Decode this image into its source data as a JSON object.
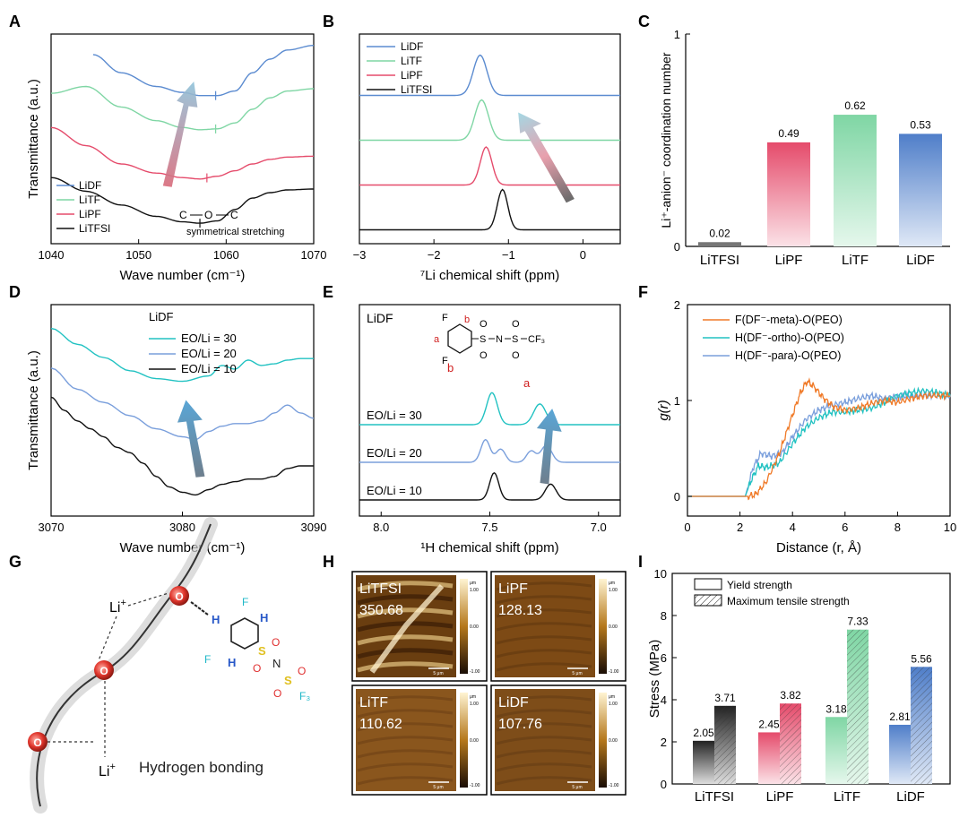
{
  "panel_letters": [
    "A",
    "B",
    "C",
    "D",
    "E",
    "F",
    "G",
    "H",
    "I"
  ],
  "colors": {
    "blue": "#5b8bd0",
    "green": "#7fd6a4",
    "red": "#e54b6b",
    "black": "#111111",
    "cyan": "#22c2c2",
    "orange": "#f07a28",
    "lightblue": "#7a9fdc"
  },
  "chart_data": [
    {
      "id": "A",
      "type": "line",
      "xlabel": "Wave number (cm⁻¹)",
      "ylabel": "Transmittance (a.u.)",
      "xlim": [
        1040,
        1070
      ],
      "xticks": [
        1040,
        1050,
        1060,
        1070
      ],
      "legend": [
        "LiDF",
        "LiTF",
        "LiPF",
        "LiTFSI"
      ],
      "series": [
        {
          "name": "LiDF",
          "x": [
            1044.8,
            1048,
            1052,
            1055,
            1057,
            1059,
            1061,
            1063,
            1065,
            1067,
            1070
          ],
          "y": [
            6.75,
            6.35,
            6.05,
            5.92,
            5.85,
            5.85,
            5.95,
            6.35,
            6.65,
            6.85,
            6.95
          ]
        },
        {
          "name": "LiTF",
          "x": [
            1040,
            1044,
            1048,
            1052,
            1055,
            1057,
            1059,
            1061,
            1063,
            1065,
            1067,
            1070
          ],
          "y": [
            5.9,
            6.05,
            5.6,
            5.3,
            5.15,
            5.1,
            5.12,
            5.25,
            5.55,
            5.8,
            5.95,
            6.0
          ]
        },
        {
          "name": "LiPF",
          "x": [
            1040,
            1044,
            1048,
            1052,
            1055,
            1057,
            1059,
            1061,
            1063,
            1065,
            1067,
            1070
          ],
          "y": [
            5.15,
            4.75,
            4.35,
            4.15,
            4.05,
            4.02,
            4.08,
            4.2,
            4.35,
            4.45,
            4.5,
            4.52
          ]
        },
        {
          "name": "LiTFSI",
          "x": [
            1040,
            1044,
            1048,
            1052,
            1055,
            1057,
            1059,
            1061,
            1063,
            1065,
            1067,
            1070
          ],
          "y": [
            4.05,
            3.75,
            3.45,
            3.2,
            3.08,
            3.05,
            3.1,
            3.35,
            3.6,
            3.72,
            3.78,
            3.8
          ]
        }
      ],
      "markers": [
        {
          "series": "LiDF",
          "x": 1058.8
        },
        {
          "series": "LiTF",
          "x": 1058.8
        },
        {
          "series": "LiPF",
          "x": 1057.8
        },
        {
          "series": "LiTFSI",
          "x": 1057
        }
      ],
      "annotation": "symmetrical stretching",
      "bond_atoms": [
        "C",
        "O",
        "C"
      ]
    },
    {
      "id": "B",
      "type": "line",
      "xlabel": "⁷Li chemical shift (ppm)",
      "ylabel": "",
      "xlim": [
        -3,
        0.5
      ],
      "xticks": [
        -3,
        -2,
        -1,
        0
      ],
      "xaxis_reversed": false,
      "legend": [
        "LiDF",
        "LiTF",
        "LiPF",
        "LiTFSI"
      ],
      "series": [
        {
          "name": "LiDF",
          "center": -1.38,
          "width": 0.13,
          "height": 0.9,
          "offset": 3.0
        },
        {
          "name": "LiTF",
          "center": -1.36,
          "width": 0.13,
          "height": 0.9,
          "offset": 2.0
        },
        {
          "name": "LiPF",
          "center": -1.3,
          "width": 0.11,
          "height": 0.85,
          "offset": 1.0
        },
        {
          "name": "LiTFSI",
          "center": -1.08,
          "width": 0.1,
          "height": 0.9,
          "offset": 0.0
        }
      ]
    },
    {
      "id": "C",
      "type": "bar",
      "ylabel": "Li⁺-anion⁻ coordination number",
      "categories": [
        "LiTFSI",
        "LiPF",
        "LiTF",
        "LiDF"
      ],
      "values": [
        0.02,
        0.49,
        0.62,
        0.53
      ],
      "value_labels": [
        "0.02",
        "0.49",
        "0.62",
        "0.53"
      ],
      "ylim": [
        0,
        1
      ],
      "yticks": [
        0,
        1
      ]
    },
    {
      "id": "D",
      "type": "line",
      "xlabel": "Wave number (cm⁻¹)",
      "ylabel": "Transmittance (a.u.)",
      "xlim": [
        3070,
        3090
      ],
      "xticks": [
        3070,
        3080,
        3090
      ],
      "legend_title": "LiDF",
      "legend": [
        "EO/Li = 30",
        "EO/Li = 20",
        "EO/Li = 10"
      ],
      "series": [
        {
          "name": "EO/Li = 30",
          "x": [
            3070,
            3072,
            3074,
            3076,
            3078,
            3080,
            3082,
            3083,
            3084,
            3085,
            3086,
            3087,
            3088,
            3089,
            3090
          ],
          "y": [
            5.05,
            4.75,
            4.5,
            4.25,
            4.1,
            4.05,
            4.15,
            4.35,
            4.28,
            4.45,
            4.35,
            4.38,
            4.45,
            4.48,
            4.48
          ]
        },
        {
          "name": "EO/Li = 20",
          "x": [
            3070,
            3072,
            3074,
            3076,
            3078,
            3080,
            3081,
            3082,
            3083,
            3084,
            3085,
            3086,
            3087,
            3088,
            3089,
            3090
          ],
          "y": [
            4.3,
            3.9,
            3.65,
            3.4,
            3.15,
            3.0,
            2.95,
            3.1,
            3.2,
            3.25,
            3.25,
            3.3,
            3.45,
            3.6,
            3.45,
            3.35
          ]
        },
        {
          "name": "EO/Li = 10",
          "x": [
            3070,
            3071,
            3072,
            3073,
            3074,
            3075,
            3076,
            3077,
            3078,
            3079,
            3080,
            3081,
            3082,
            3083,
            3084,
            3085,
            3086,
            3087,
            3088,
            3089,
            3090
          ],
          "y": [
            3.75,
            3.5,
            3.3,
            3.15,
            3.0,
            2.8,
            2.7,
            2.5,
            2.25,
            2.05,
            1.95,
            1.9,
            2.0,
            2.1,
            2.15,
            2.2,
            2.2,
            2.25,
            2.4,
            2.45,
            2.45
          ]
        }
      ]
    },
    {
      "id": "E",
      "type": "line",
      "xlabel": "¹H chemical shift (ppm)",
      "ylabel": "",
      "xlim": [
        8.1,
        6.9
      ],
      "xticks": [
        8.0,
        7.5,
        7.0
      ],
      "xtick_labels": [
        "8.0",
        "7.5",
        "7.0"
      ],
      "title": "LiDF",
      "peak_labels": [
        "b",
        "a"
      ],
      "molecule": {
        "F": "F",
        "a": "a",
        "b": "b",
        "N": "N",
        "O": "O",
        "S": "S",
        "CF3": "CF₃"
      },
      "series": [
        {
          "name": "EO/Li = 30",
          "offset": 2.0,
          "peaks": [
            {
              "c": 7.49,
              "w": 0.035,
              "h": 0.85
            },
            {
              "c": 7.27,
              "w": 0.04,
              "h": 0.55
            }
          ]
        },
        {
          "name": "EO/Li = 20",
          "offset": 1.0,
          "peaks": [
            {
              "c": 7.52,
              "w": 0.03,
              "h": 0.6
            },
            {
              "c": 7.45,
              "w": 0.03,
              "h": 0.35
            },
            {
              "c": 7.24,
              "w": 0.035,
              "h": 0.45
            },
            {
              "c": 7.31,
              "w": 0.03,
              "h": 0.3
            }
          ]
        },
        {
          "name": "EO/Li = 10",
          "offset": 0.0,
          "peaks": [
            {
              "c": 7.48,
              "w": 0.03,
              "h": 0.72
            },
            {
              "c": 7.22,
              "w": 0.035,
              "h": 0.42
            }
          ]
        }
      ]
    },
    {
      "id": "F",
      "type": "line",
      "xlabel": "Distance (r, Å)",
      "ylabel": "g(r)",
      "xlim": [
        0,
        10
      ],
      "ylim": [
        0,
        2
      ],
      "xticks": [
        0,
        2,
        4,
        6,
        8,
        10
      ],
      "yticks": [
        0,
        1,
        2
      ],
      "legend": [
        "F(DF⁻-meta)-O(PEO)",
        "H(DF⁻-ortho)-O(PEO)",
        "H(DF⁻-para)-O(PEO)"
      ],
      "series": [
        {
          "name": "F(DF⁻-meta)-O(PEO)",
          "x": [
            0,
            2.3,
            2.6,
            3.0,
            3.5,
            4.0,
            4.3,
            4.55,
            4.8,
            5.2,
            5.6,
            6.0,
            6.5,
            7.0,
            7.5,
            8.0,
            8.5,
            9.0,
            9.5,
            10
          ],
          "y": [
            0,
            0,
            0.02,
            0.15,
            0.45,
            0.85,
            1.08,
            1.2,
            1.15,
            1.02,
            0.93,
            0.9,
            0.92,
            0.97,
            1.0,
            0.98,
            1.02,
            1.05,
            1.05,
            1.05
          ]
        },
        {
          "name": "H(DF⁻-ortho)-O(PEO)",
          "x": [
            0,
            2.2,
            2.4,
            2.7,
            3.0,
            3.5,
            4.0,
            4.5,
            5.0,
            5.5,
            6.0,
            6.5,
            7.0,
            7.5,
            8.0,
            8.5,
            9.0,
            9.5,
            10
          ],
          "y": [
            0,
            0,
            0.15,
            0.32,
            0.3,
            0.35,
            0.55,
            0.72,
            0.82,
            0.88,
            0.88,
            0.9,
            0.92,
            0.98,
            1.05,
            1.08,
            1.1,
            1.08,
            1.05
          ]
        },
        {
          "name": "H(DF⁻-para)-O(PEO)",
          "x": [
            0,
            2.2,
            2.5,
            2.8,
            3.2,
            3.6,
            4.0,
            4.5,
            5.0,
            5.5,
            6.0,
            6.5,
            7.0,
            7.5,
            8.0,
            8.5,
            9.0,
            9.5,
            10
          ],
          "y": [
            0,
            0,
            0.3,
            0.45,
            0.42,
            0.45,
            0.62,
            0.8,
            0.9,
            0.95,
            0.98,
            1.02,
            1.05,
            1.02,
            1.04,
            1.05,
            1.06,
            1.05,
            1.05
          ]
        }
      ]
    },
    {
      "id": "I",
      "type": "bar",
      "ylabel": "Stress (MPa)",
      "categories": [
        "LiTFSI",
        "LiPF",
        "LiTF",
        "LiDF"
      ],
      "series": [
        {
          "name": "Yield strength",
          "values": [
            2.05,
            2.45,
            3.18,
            2.81
          ],
          "labels": [
            "2.05",
            "2.45",
            "3.18",
            "2.81"
          ]
        },
        {
          "name": "Maximum tensile strength",
          "values": [
            3.71,
            3.82,
            7.33,
            5.56
          ],
          "labels": [
            "3.71",
            "3.82",
            "7.33",
            "5.56"
          ]
        }
      ],
      "ylim": [
        0,
        10
      ],
      "yticks": [
        0,
        2,
        4,
        6,
        8,
        10
      ]
    }
  ],
  "panel_g": {
    "li_label": "Li",
    "li_charge": "+",
    "o_label": "O",
    "caption": "Hydrogen bonding",
    "h_label": "H",
    "f_label": "F",
    "s_label": "S",
    "n_label": "N",
    "cf3_label": "F₃"
  },
  "panel_h": {
    "tiles": [
      {
        "name": "LiTFSI",
        "value": "350.68"
      },
      {
        "name": "LiPF",
        "value": "128.13"
      },
      {
        "name": "LiTF",
        "value": "110.62"
      },
      {
        "name": "LiDF",
        "value": "107.76"
      }
    ],
    "scale_bar": "5 μm",
    "colorbar_top": "1.00",
    "colorbar_bottom": "-1.00",
    "colorbar_unit": "μm",
    "colorbar_mid": "0.00"
  }
}
